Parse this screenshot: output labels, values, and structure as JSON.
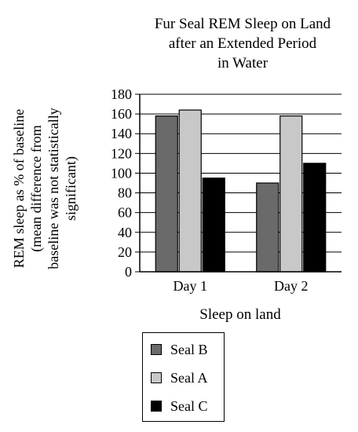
{
  "chart_data": {
    "type": "bar",
    "title_lines": [
      "Fur Seal REM Sleep on Land",
      "after an Extended Period",
      "in Water"
    ],
    "ylabel_lines": [
      "REM sleep as % of baseline",
      "(mean difference from",
      "baseline was not statistically",
      "significant)"
    ],
    "xlabel": "Sleep on land",
    "categories": [
      "Day 1",
      "Day 2"
    ],
    "ylim": [
      0,
      180
    ],
    "yticks": [
      0,
      20,
      40,
      60,
      80,
      100,
      120,
      140,
      160,
      180
    ],
    "grid": true,
    "series": [
      {
        "name": "Seal B",
        "color": "#6a6a6a",
        "values": [
          158,
          90
        ]
      },
      {
        "name": "Seal A",
        "color": "#c8c8c8",
        "values": [
          164,
          158
        ]
      },
      {
        "name": "Seal C",
        "color": "#000000",
        "values": [
          95,
          110
        ]
      }
    ],
    "legend": {
      "placement": "bottom",
      "order": [
        "Seal B",
        "Seal A",
        "Seal C"
      ]
    }
  }
}
